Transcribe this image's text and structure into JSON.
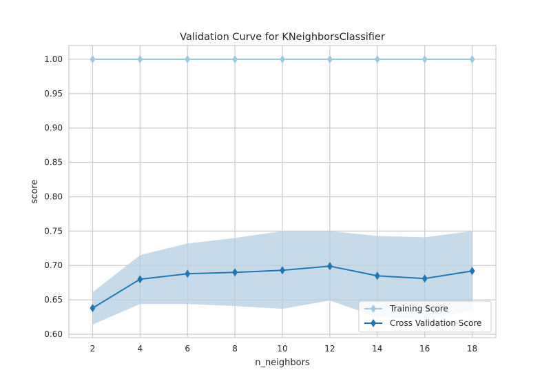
{
  "chart_data": {
    "type": "line",
    "title": "Validation Curve for KNeighborsClassifier",
    "xlabel": "n_neighbors",
    "ylabel": "score",
    "x": [
      2,
      4,
      6,
      8,
      10,
      12,
      14,
      16,
      18
    ],
    "xlim": [
      1,
      19
    ],
    "ylim": [
      0.595,
      1.02
    ],
    "xticks": [
      "2",
      "4",
      "6",
      "8",
      "10",
      "12",
      "14",
      "16",
      "18"
    ],
    "yticks": [
      "0.60",
      "0.65",
      "0.70",
      "0.75",
      "0.80",
      "0.85",
      "0.90",
      "0.95",
      "1.00"
    ],
    "grid": true,
    "legend_position": "lower-right",
    "series": [
      {
        "name": "Training Score",
        "color": "#9ecae1",
        "marker": "diamond",
        "values": [
          1.0,
          1.0,
          1.0,
          1.0,
          1.0,
          1.0,
          1.0,
          1.0,
          1.0
        ],
        "band_low": [
          1.0,
          1.0,
          1.0,
          1.0,
          1.0,
          1.0,
          1.0,
          1.0,
          1.0
        ],
        "band_high": [
          1.0,
          1.0,
          1.0,
          1.0,
          1.0,
          1.0,
          1.0,
          1.0,
          1.0
        ]
      },
      {
        "name": "Cross Validation Score",
        "color": "#1f77b4",
        "band_color": "#b3cde3",
        "marker": "diamond",
        "values": [
          0.638,
          0.68,
          0.688,
          0.69,
          0.693,
          0.699,
          0.685,
          0.681,
          0.692
        ],
        "band_low": [
          0.614,
          0.644,
          0.644,
          0.641,
          0.637,
          0.649,
          0.625,
          0.62,
          0.635
        ],
        "band_high": [
          0.661,
          0.715,
          0.732,
          0.74,
          0.75,
          0.75,
          0.743,
          0.741,
          0.75
        ]
      }
    ]
  }
}
